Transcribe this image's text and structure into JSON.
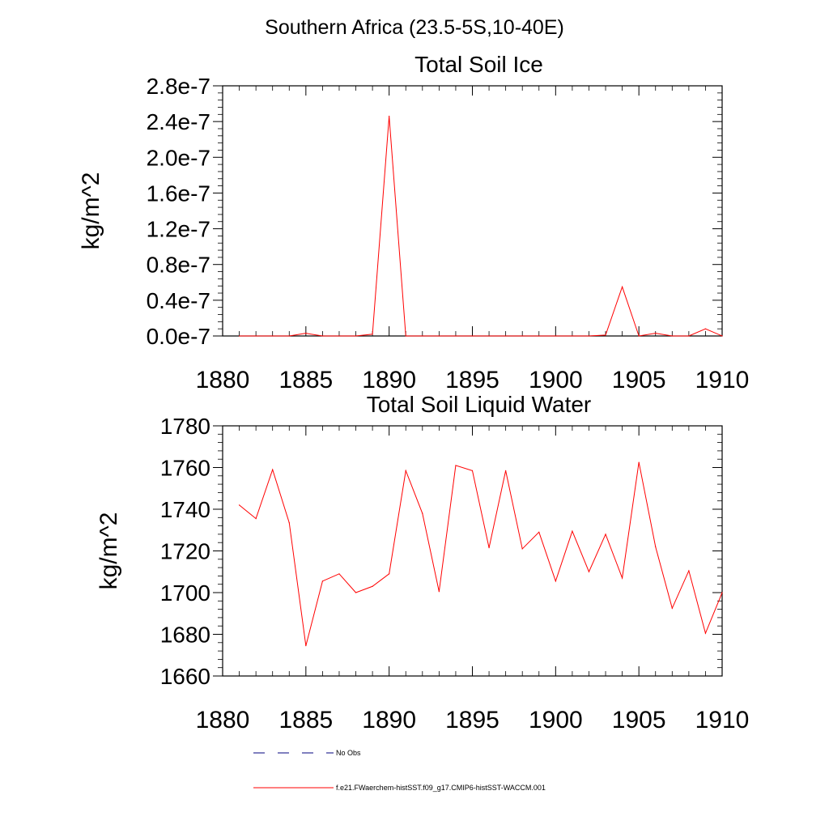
{
  "figure_title": "Southern Africa (23.5-5S,10-40E)",
  "legend": {
    "items": [
      {
        "label": "No Obs",
        "color": "#00007f",
        "dash": "dashed"
      },
      {
        "label": "f.e21.FWaerchem-histSST.f09_g17.CMIP6-histSST-WACCM.001",
        "color": "#ff0000",
        "dash": "solid"
      }
    ]
  },
  "chart_data": [
    {
      "type": "line",
      "title": "Total Soil Ice",
      "xlabel": "",
      "ylabel": "kg/m^2",
      "xlim": [
        1880,
        1910
      ],
      "ylim": [
        0,
        2.8e-07
      ],
      "x_ticks": [
        1880,
        1885,
        1890,
        1895,
        1900,
        1905,
        1910
      ],
      "x_tick_labels": [
        "1880",
        "1885",
        "1890",
        "1895",
        "1900",
        "1905",
        "1910"
      ],
      "y_ticks": [
        0,
        4e-08,
        8e-08,
        1.2e-07,
        1.6e-07,
        2e-07,
        2.4e-07,
        2.8e-07
      ],
      "y_tick_labels": [
        "0.0e-7",
        "0.4e-7",
        "0.8e-7",
        "1.2e-7",
        "1.6e-7",
        "2.0e-7",
        "2.4e-7",
        "2.8e-7"
      ],
      "grid": false,
      "series": [
        {
          "color": "#ff0000",
          "x": [
            1881,
            1882,
            1883,
            1884,
            1885,
            1886,
            1887,
            1888,
            1889,
            1890,
            1891,
            1892,
            1893,
            1894,
            1895,
            1896,
            1897,
            1898,
            1899,
            1900,
            1901,
            1902,
            1903,
            1904,
            1905,
            1906,
            1907,
            1908,
            1909,
            1910
          ],
          "y": [
            0,
            0,
            0,
            0,
            3e-09,
            0,
            0,
            0,
            2e-09,
            2.46e-07,
            0,
            0,
            0,
            0,
            0,
            0,
            0,
            0,
            0,
            0,
            0,
            0,
            1e-09,
            5.5e-08,
            0,
            3e-09,
            0,
            0,
            8e-09,
            0
          ]
        }
      ]
    },
    {
      "type": "line",
      "title": "Total Soil Liquid Water",
      "xlabel": "",
      "ylabel": "kg/m^2",
      "xlim": [
        1880,
        1910
      ],
      "ylim": [
        1660,
        1780
      ],
      "x_ticks": [
        1880,
        1885,
        1890,
        1895,
        1900,
        1905,
        1910
      ],
      "x_tick_labels": [
        "1880",
        "1885",
        "1890",
        "1895",
        "1900",
        "1905",
        "1910"
      ],
      "y_ticks": [
        1660,
        1680,
        1700,
        1720,
        1740,
        1760,
        1780
      ],
      "y_tick_labels": [
        "1660",
        "1680",
        "1700",
        "1720",
        "1740",
        "1760",
        "1780"
      ],
      "grid": false,
      "series": [
        {
          "color": "#ff0000",
          "x": [
            1881,
            1882,
            1883,
            1884,
            1885,
            1886,
            1887,
            1888,
            1889,
            1890,
            1891,
            1892,
            1893,
            1894,
            1895,
            1896,
            1897,
            1898,
            1899,
            1900,
            1901,
            1902,
            1903,
            1904,
            1905,
            1906,
            1907,
            1908,
            1909,
            1910
          ],
          "y": [
            1742,
            1735.5,
            1759,
            1733.5,
            1674.5,
            1705.5,
            1709,
            1700,
            1703,
            1709,
            1758.5,
            1738,
            1700.5,
            1761,
            1758.5,
            1721.5,
            1758.5,
            1721,
            1729,
            1705.5,
            1729.5,
            1710,
            1728,
            1707,
            1762.5,
            1722,
            1692.5,
            1710.5,
            1680.5,
            1700
          ]
        }
      ]
    }
  ]
}
